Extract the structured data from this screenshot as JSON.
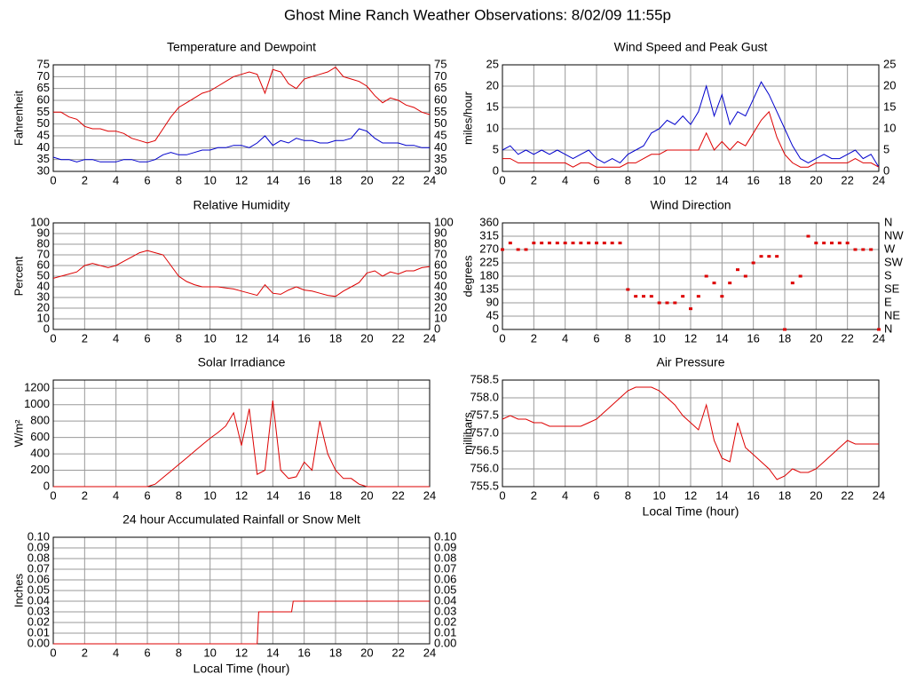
{
  "title": "Ghost Mine Ranch Weather Observations: 8/02/09 11:55p",
  "chart_data": [
    {
      "type": "line",
      "title": "Temperature and Dewpoint",
      "ylabel": "Fahrenheit",
      "mirror_y_ticks": true,
      "grid": true,
      "x": [
        0,
        0.5,
        1,
        1.5,
        2,
        2.5,
        3,
        3.5,
        4,
        4.5,
        5,
        5.5,
        6,
        6.5,
        7,
        7.5,
        8,
        8.5,
        9,
        9.5,
        10,
        10.5,
        11,
        11.5,
        12,
        12.5,
        13,
        13.5,
        14,
        14.5,
        15,
        15.5,
        16,
        16.5,
        17,
        17.5,
        18,
        18.5,
        19,
        19.5,
        20,
        20.5,
        21,
        21.5,
        22,
        22.5,
        23,
        23.5,
        24
      ],
      "series": [
        {
          "color": "#dd0000",
          "values": [
            55,
            55,
            53,
            52,
            49,
            48,
            48,
            47,
            47,
            46,
            44,
            43,
            42,
            43,
            48,
            53,
            57,
            59,
            61,
            63,
            64,
            66,
            68,
            70,
            71,
            72,
            71,
            63,
            73,
            72,
            67,
            65,
            69,
            70,
            71,
            72,
            74,
            70,
            69,
            68,
            66,
            62,
            59,
            61,
            60,
            58,
            57,
            55,
            54
          ]
        },
        {
          "color": "#0000cc",
          "values": [
            36,
            35,
            35,
            34,
            35,
            35,
            34,
            34,
            34,
            35,
            35,
            34,
            34,
            35,
            37,
            38,
            37,
            37,
            38,
            39,
            39,
            40,
            40,
            41,
            41,
            40,
            42,
            45,
            41,
            43,
            42,
            44,
            43,
            43,
            42,
            42,
            43,
            43,
            44,
            48,
            47,
            44,
            42,
            42,
            42,
            41,
            41,
            40,
            40
          ]
        }
      ],
      "xlim": [
        0,
        24
      ],
      "xticks": [
        0,
        2,
        4,
        6,
        8,
        10,
        12,
        14,
        16,
        18,
        20,
        22,
        24
      ],
      "ylim": [
        30,
        75
      ],
      "yticks": [
        30,
        35,
        40,
        45,
        50,
        55,
        60,
        65,
        70,
        75
      ]
    },
    {
      "type": "line",
      "title": "Wind Speed and Peak Gust",
      "ylabel": "miles/hour",
      "mirror_y_ticks": true,
      "grid": true,
      "x": [
        0,
        0.5,
        1,
        1.5,
        2,
        2.5,
        3,
        3.5,
        4,
        4.5,
        5,
        5.5,
        6,
        6.5,
        7,
        7.5,
        8,
        8.5,
        9,
        9.5,
        10,
        10.5,
        11,
        11.5,
        12,
        12.5,
        13,
        13.5,
        14,
        14.5,
        15,
        15.5,
        16,
        16.5,
        17,
        17.5,
        18,
        18.5,
        19,
        19.5,
        20,
        20.5,
        21,
        21.5,
        22,
        22.5,
        23,
        23.5,
        24
      ],
      "series": [
        {
          "color": "#0000cc",
          "values": [
            5,
            6,
            4,
            5,
            4,
            5,
            4,
            5,
            4,
            3,
            4,
            5,
            3,
            2,
            3,
            2,
            4,
            5,
            6,
            9,
            10,
            12,
            11,
            13,
            11,
            14,
            20,
            13,
            18,
            11,
            14,
            13,
            17,
            21,
            18,
            14,
            10,
            6,
            3,
            2,
            3,
            4,
            3,
            3,
            4,
            5,
            3,
            4,
            1
          ]
        },
        {
          "color": "#dd0000",
          "values": [
            3,
            3,
            2,
            2,
            2,
            2,
            2,
            2,
            2,
            1,
            2,
            2,
            1,
            1,
            1,
            1,
            2,
            2,
            3,
            4,
            4,
            5,
            5,
            5,
            5,
            5,
            9,
            5,
            7,
            5,
            7,
            6,
            9,
            12,
            14,
            8,
            4,
            2,
            1,
            1,
            2,
            2,
            2,
            2,
            2,
            3,
            2,
            2,
            1
          ]
        }
      ],
      "xlim": [
        0,
        24
      ],
      "xticks": [
        0,
        2,
        4,
        6,
        8,
        10,
        12,
        14,
        16,
        18,
        20,
        22,
        24
      ],
      "ylim": [
        0,
        25
      ],
      "yticks": [
        0,
        5,
        10,
        15,
        20,
        25
      ]
    },
    {
      "type": "line",
      "title": "Relative Humidity",
      "ylabel": "Percent",
      "mirror_y_ticks": true,
      "grid": true,
      "x": [
        0,
        0.5,
        1,
        1.5,
        2,
        2.5,
        3,
        3.5,
        4,
        4.5,
        5,
        5.5,
        6,
        6.5,
        7,
        7.5,
        8,
        8.5,
        9,
        9.5,
        10,
        10.5,
        11,
        11.5,
        12,
        12.5,
        13,
        13.5,
        14,
        14.5,
        15,
        15.5,
        16,
        16.5,
        17,
        17.5,
        18,
        18.5,
        19,
        19.5,
        20,
        20.5,
        21,
        21.5,
        22,
        22.5,
        23,
        23.5,
        24
      ],
      "series": [
        {
          "color": "#dd0000",
          "values": [
            48,
            50,
            52,
            54,
            60,
            62,
            60,
            58,
            60,
            64,
            68,
            72,
            74,
            72,
            70,
            60,
            50,
            45,
            42,
            40,
            40,
            40,
            39,
            38,
            36,
            34,
            32,
            42,
            34,
            33,
            37,
            40,
            37,
            36,
            34,
            32,
            31,
            36,
            40,
            44,
            53,
            55,
            50,
            54,
            52,
            55,
            55,
            58,
            59
          ]
        }
      ],
      "xlim": [
        0,
        24
      ],
      "xticks": [
        0,
        2,
        4,
        6,
        8,
        10,
        12,
        14,
        16,
        18,
        20,
        22,
        24
      ],
      "ylim": [
        0,
        100
      ],
      "yticks": [
        0,
        10,
        20,
        30,
        40,
        50,
        60,
        70,
        80,
        90,
        100
      ]
    },
    {
      "type": "scatter",
      "title": "Wind Direction",
      "ylabel": "degrees",
      "grid": true,
      "x": [
        0,
        0.5,
        1,
        1.5,
        2,
        2.5,
        3,
        3.5,
        4,
        4.5,
        5,
        5.5,
        6,
        6.5,
        7,
        7.5,
        8,
        8.5,
        9,
        9.5,
        10,
        10.5,
        11,
        11.5,
        12,
        12.5,
        13,
        13.5,
        14,
        14.5,
        15,
        15.5,
        16,
        16.5,
        17,
        17.5,
        18,
        18.5,
        19,
        19.5,
        20,
        20.5,
        21,
        21.5,
        22,
        22.5,
        23,
        23.5,
        24
      ],
      "series": [
        {
          "color": "#dd0000",
          "values": [
            270,
            292,
            270,
            270,
            292,
            292,
            292,
            292,
            292,
            292,
            292,
            292,
            292,
            292,
            292,
            292,
            135,
            112,
            112,
            112,
            90,
            90,
            90,
            112,
            70,
            112,
            180,
            157,
            112,
            157,
            202,
            180,
            225,
            247,
            247,
            247,
            0,
            157,
            180,
            315,
            292,
            292,
            292,
            292,
            292,
            270,
            270,
            270,
            0
          ]
        }
      ],
      "xlim": [
        0,
        24
      ],
      "xticks": [
        0,
        2,
        4,
        6,
        8,
        10,
        12,
        14,
        16,
        18,
        20,
        22,
        24
      ],
      "ylim": [
        0,
        360
      ],
      "yticks": [
        0,
        45,
        90,
        135,
        180,
        225,
        270,
        315,
        360
      ],
      "y2lim": [
        0,
        360
      ],
      "y2ticks": [
        {
          "value": 0,
          "label": "N"
        },
        {
          "value": 45,
          "label": "NE"
        },
        {
          "value": 90,
          "label": "E"
        },
        {
          "value": 135,
          "label": "SE"
        },
        {
          "value": 180,
          "label": "S"
        },
        {
          "value": 225,
          "label": "SW"
        },
        {
          "value": 270,
          "label": "W"
        },
        {
          "value": 315,
          "label": "NW"
        },
        {
          "value": 360,
          "label": "N"
        }
      ]
    },
    {
      "type": "line",
      "title": "Solar Irradiance",
      "ylabel": "W/m²",
      "grid": true,
      "x": [
        0,
        0.5,
        1,
        1.5,
        2,
        2.5,
        3,
        3.5,
        4,
        4.5,
        5,
        5.5,
        6,
        6.5,
        7,
        7.5,
        8,
        8.5,
        9,
        9.5,
        10,
        10.5,
        11,
        11.5,
        12,
        12.5,
        13,
        13.5,
        14,
        14.5,
        15,
        15.5,
        16,
        16.5,
        17,
        17.5,
        18,
        18.5,
        19,
        19.5,
        20,
        20.5,
        21,
        21.5,
        22,
        22.5,
        23,
        23.5,
        24
      ],
      "series": [
        {
          "color": "#dd0000",
          "values": [
            0,
            0,
            0,
            0,
            0,
            0,
            0,
            0,
            0,
            0,
            0,
            0,
            0,
            30,
            110,
            190,
            270,
            350,
            430,
            510,
            590,
            660,
            740,
            900,
            500,
            950,
            150,
            200,
            1050,
            200,
            100,
            120,
            300,
            200,
            800,
            400,
            200,
            100,
            100,
            30,
            0,
            0,
            0,
            0,
            0,
            0,
            0,
            0,
            0
          ]
        }
      ],
      "xlim": [
        0,
        24
      ],
      "xticks": [
        0,
        2,
        4,
        6,
        8,
        10,
        12,
        14,
        16,
        18,
        20,
        22,
        24
      ],
      "ylim": [
        0,
        1300
      ],
      "yticks": [
        0,
        200,
        400,
        600,
        800,
        1000,
        1200
      ]
    },
    {
      "type": "line",
      "title": "Air Pressure",
      "ylabel": "millibars",
      "xlabel": "Local Time (hour)",
      "grid": true,
      "x": [
        0,
        0.5,
        1,
        1.5,
        2,
        2.5,
        3,
        3.5,
        4,
        4.5,
        5,
        5.5,
        6,
        6.5,
        7,
        7.5,
        8,
        8.5,
        9,
        9.5,
        10,
        10.5,
        11,
        11.5,
        12,
        12.5,
        13,
        13.5,
        14,
        14.5,
        15,
        15.5,
        16,
        16.5,
        17,
        17.5,
        18,
        18.5,
        19,
        19.5,
        20,
        20.5,
        21,
        21.5,
        22,
        22.5,
        23,
        23.5,
        24
      ],
      "series": [
        {
          "color": "#dd0000",
          "values": [
            757.4,
            757.5,
            757.4,
            757.4,
            757.3,
            757.3,
            757.2,
            757.2,
            757.2,
            757.2,
            757.2,
            757.3,
            757.4,
            757.6,
            757.8,
            758.0,
            758.2,
            758.3,
            758.3,
            758.3,
            758.2,
            758.0,
            757.8,
            757.5,
            757.3,
            757.1,
            757.8,
            756.8,
            756.3,
            756.2,
            757.3,
            756.6,
            756.4,
            756.2,
            756.0,
            755.7,
            755.8,
            756.0,
            755.9,
            755.9,
            756.0,
            756.2,
            756.4,
            756.6,
            756.8,
            756.7,
            756.7,
            756.7,
            756.7
          ]
        }
      ],
      "xlim": [
        0,
        24
      ],
      "xticks": [
        0,
        2,
        4,
        6,
        8,
        10,
        12,
        14,
        16,
        18,
        20,
        22,
        24
      ],
      "ylim": [
        755.5,
        758.5
      ],
      "yticks": [
        755.5,
        {
          "value": 756,
          "label": "756.0"
        },
        756.5,
        {
          "value": 757,
          "label": "757.0"
        },
        757.5,
        {
          "value": 758,
          "label": "758.0"
        },
        758.5
      ]
    },
    {
      "type": "line",
      "title": "24 hour Accumulated Rainfall or Snow Melt",
      "ylabel": "Inches",
      "xlabel": "Local Time (hour)",
      "mirror_y_ticks": true,
      "grid": true,
      "x": [
        0,
        13,
        13.1,
        15.2,
        15.3,
        24
      ],
      "series": [
        {
          "color": "#dd0000",
          "values": [
            0,
            0,
            0.03,
            0.03,
            0.04,
            0.04
          ]
        }
      ],
      "xlim": [
        0,
        24
      ],
      "xticks": [
        0,
        2,
        4,
        6,
        8,
        10,
        12,
        14,
        16,
        18,
        20,
        22,
        24
      ],
      "ylim": [
        0,
        0.1
      ],
      "yticks": [
        {
          "value": 0,
          "label": "0.00"
        },
        0.01,
        0.02,
        0.03,
        0.04,
        0.05,
        0.06,
        0.07,
        0.08,
        0.09,
        {
          "value": 0.1,
          "label": "0.10"
        }
      ]
    }
  ]
}
